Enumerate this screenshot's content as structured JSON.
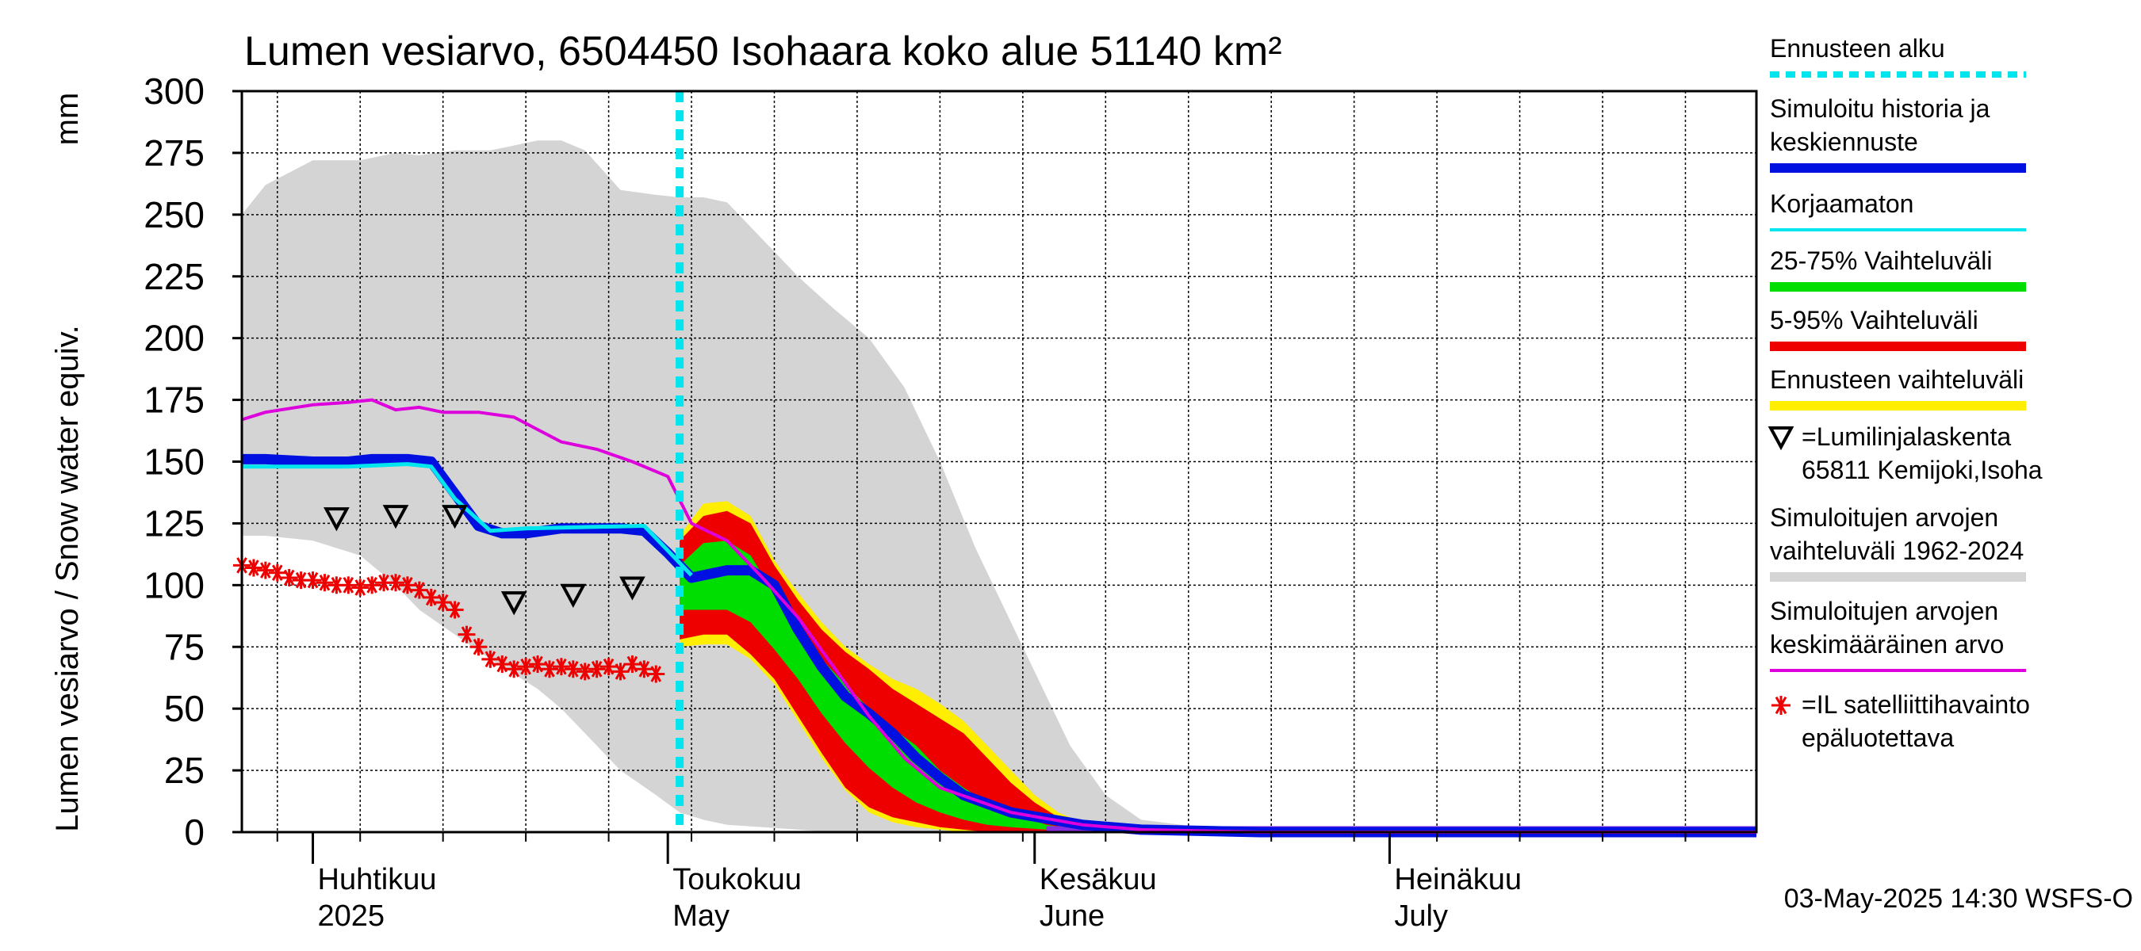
{
  "chart_data": {
    "type": "line",
    "title": "Lumen vesiarvo, 6504450 Isohaara koko alue 51140 km²",
    "ylabel": "Lumen vesiarvo / Snow water equiv.",
    "yunit": "mm",
    "ylim": [
      0,
      300
    ],
    "yticks": [
      0,
      25,
      50,
      75,
      100,
      125,
      150,
      175,
      200,
      225,
      250,
      275,
      300
    ],
    "xlim": [
      "2025-03-26",
      "2025-08-01"
    ],
    "grid": true,
    "legend_position": "right",
    "timestamp": "03-May-2025 14:30 WSFS-O",
    "month_labels": [
      {
        "fi": "Huhtikuu",
        "en": "2025",
        "date": "2025-04-01"
      },
      {
        "fi": "Toukokuu",
        "en": "May",
        "date": "2025-05-01"
      },
      {
        "fi": "Kesäkuu",
        "en": "June",
        "date": "2025-06-01"
      },
      {
        "fi": "Heinäkuu",
        "en": "July",
        "date": "2025-07-01"
      }
    ],
    "forecast_start": "2025-05-02",
    "legend": [
      {
        "label": "Ennusteen alku",
        "color": "#00e5ee",
        "style": "dashed"
      },
      {
        "label": "Simuloitu historia ja keskiennuste",
        "color": "#0010e0",
        "style": "thick"
      },
      {
        "label": "Korjaamaton",
        "color": "#00e5ee",
        "style": "line"
      },
      {
        "label": "25-75% Vaihteluväli",
        "color": "#00dd00",
        "style": "thick"
      },
      {
        "label": "5-95% Vaihteluväli",
        "color": "#ee0000",
        "style": "thick"
      },
      {
        "label": "Ennusteen vaihteluväli",
        "color": "#ffee00",
        "style": "thick"
      },
      {
        "label": "=Lumilinjalaskenta 65811 Kemijoki,Isoha",
        "color": "#000000",
        "style": "triangle"
      },
      {
        "label": "Simuloitujen arvojen vaihteluväli 1962-2024",
        "color": "#d4d4d4",
        "style": "thick"
      },
      {
        "label": "Simuloitujen arvojen keskimääräinen arvo",
        "color": "#dd00dd",
        "style": "line"
      },
      {
        "label": "=IL satelliittihavainto epäluotettava",
        "color": "#ee0000",
        "style": "asterisk"
      }
    ],
    "series": {
      "hist_range_1962_2024": {
        "x": [
          "2025-03-26",
          "2025-03-28",
          "2025-04-01",
          "2025-04-05",
          "2025-04-08",
          "2025-04-10",
          "2025-04-13",
          "2025-04-16",
          "2025-04-20",
          "2025-04-22",
          "2025-04-24",
          "2025-04-27",
          "2025-04-30",
          "2025-05-02",
          "2025-05-04",
          "2025-05-06",
          "2025-05-09",
          "2025-05-12",
          "2025-05-15",
          "2025-05-18",
          "2025-05-21",
          "2025-05-24",
          "2025-05-27",
          "2025-05-30",
          "2025-06-02",
          "2025-06-04",
          "2025-06-07",
          "2025-06-10",
          "2025-06-15",
          "2025-06-20",
          "2025-06-30",
          "2025-08-01"
        ],
        "upper": [
          250,
          262,
          272,
          272,
          275,
          274,
          276,
          276,
          280,
          280,
          276,
          260,
          258,
          257,
          257,
          255,
          240,
          225,
          212,
          200,
          180,
          150,
          115,
          85,
          55,
          35,
          15,
          5,
          2,
          0,
          0,
          0
        ],
        "lower": [
          120,
          120,
          118,
          112,
          100,
          90,
          80,
          70,
          58,
          50,
          40,
          25,
          15,
          8,
          5,
          3,
          2,
          1,
          0,
          0,
          0,
          0,
          0,
          0,
          0,
          0,
          0,
          0,
          0,
          0,
          0,
          0
        ]
      },
      "hist_mean": {
        "x": [
          "2025-03-26",
          "2025-03-28",
          "2025-04-01",
          "2025-04-04",
          "2025-04-06",
          "2025-04-08",
          "2025-04-10",
          "2025-04-12",
          "2025-04-15",
          "2025-04-18",
          "2025-04-20",
          "2025-04-22",
          "2025-04-25",
          "2025-04-28",
          "2025-05-01",
          "2025-05-03",
          "2025-05-06",
          "2025-05-09",
          "2025-05-12",
          "2025-05-15",
          "2025-05-18",
          "2025-05-21",
          "2025-05-24",
          "2025-05-30",
          "2025-06-05",
          "2025-06-10",
          "2025-06-20",
          "2025-08-01"
        ],
        "y": [
          167,
          170,
          173,
          174,
          175,
          171,
          172,
          170,
          170,
          168,
          163,
          158,
          155,
          150,
          144,
          125,
          118,
          103,
          87,
          67,
          47,
          30,
          18,
          8,
          3,
          1,
          0,
          0
        ]
      },
      "simulated_history_and_forecast": {
        "x": [
          "2025-03-26",
          "2025-03-28",
          "2025-04-01",
          "2025-04-04",
          "2025-04-06",
          "2025-04-09",
          "2025-04-11",
          "2025-04-13",
          "2025-04-15",
          "2025-04-17",
          "2025-04-19",
          "2025-04-22",
          "2025-04-25",
          "2025-04-27",
          "2025-04-29",
          "2025-05-01",
          "2025-05-03",
          "2025-05-06",
          "2025-05-08",
          "2025-05-10",
          "2025-05-12",
          "2025-05-14",
          "2025-05-16",
          "2025-05-18",
          "2025-05-20",
          "2025-05-22",
          "2025-05-24",
          "2025-05-26",
          "2025-05-30",
          "2025-06-05",
          "2025-06-10",
          "2025-06-20",
          "2025-08-01"
        ],
        "y": [
          151,
          151,
          150,
          150,
          151,
          151,
          150,
          137,
          124,
          121,
          121,
          123,
          123,
          123,
          122,
          113,
          103,
          106,
          106,
          100,
          82,
          67,
          55,
          48,
          40,
          30,
          22,
          15,
          8,
          3,
          1,
          0,
          0
        ]
      },
      "uncorrected": {
        "x": [
          "2025-03-26",
          "2025-04-04",
          "2025-04-09",
          "2025-04-11",
          "2025-04-13",
          "2025-04-16",
          "2025-04-19",
          "2025-04-29",
          "2025-05-01",
          "2025-05-03"
        ],
        "y": [
          148,
          148,
          149,
          148,
          135,
          122,
          123,
          124,
          114,
          104
        ]
      },
      "forecast_range": {
        "x": [
          "2025-05-02",
          "2025-05-04",
          "2025-05-06",
          "2025-05-08",
          "2025-05-10",
          "2025-05-12",
          "2025-05-14",
          "2025-05-16",
          "2025-05-18",
          "2025-05-20",
          "2025-05-22",
          "2025-05-24",
          "2025-05-26",
          "2025-05-28",
          "2025-05-30",
          "2025-06-01",
          "2025-06-03",
          "2025-06-05",
          "2025-06-08",
          "2025-06-12"
        ],
        "upper": [
          120,
          133,
          134,
          128,
          110,
          97,
          85,
          75,
          68,
          62,
          58,
          52,
          45,
          35,
          25,
          15,
          8,
          4,
          2,
          0
        ],
        "lower": [
          75,
          76,
          76,
          70,
          60,
          45,
          30,
          17,
          8,
          4,
          2,
          1,
          0,
          0,
          0,
          0,
          0,
          0,
          0,
          0
        ]
      },
      "p5_95": {
        "x": [
          "2025-05-02",
          "2025-05-04",
          "2025-05-06",
          "2025-05-08",
          "2025-05-10",
          "2025-05-12",
          "2025-05-14",
          "2025-05-16",
          "2025-05-18",
          "2025-05-20",
          "2025-05-22",
          "2025-05-24",
          "2025-05-26",
          "2025-05-28",
          "2025-05-30",
          "2025-06-01",
          "2025-06-03",
          "2025-06-06",
          "2025-06-10"
        ],
        "upper": [
          118,
          128,
          130,
          125,
          108,
          94,
          82,
          73,
          66,
          58,
          52,
          46,
          40,
          30,
          20,
          12,
          6,
          2,
          0
        ],
        "lower": [
          78,
          80,
          80,
          72,
          62,
          47,
          32,
          18,
          10,
          6,
          4,
          2,
          1,
          0,
          0,
          0,
          0,
          0,
          0
        ]
      },
      "p25_75": {
        "x": [
          "2025-05-02",
          "2025-05-04",
          "2025-05-06",
          "2025-05-08",
          "2025-05-10",
          "2025-05-12",
          "2025-05-14",
          "2025-05-16",
          "2025-05-18",
          "2025-05-20",
          "2025-05-22",
          "2025-05-24",
          "2025-05-26",
          "2025-05-28",
          "2025-05-30",
          "2025-06-02",
          "2025-06-06"
        ],
        "upper": [
          108,
          117,
          118,
          112,
          96,
          82,
          70,
          60,
          50,
          42,
          35,
          25,
          18,
          12,
          8,
          3,
          0
        ],
        "lower": [
          90,
          90,
          90,
          85,
          74,
          62,
          48,
          36,
          26,
          18,
          12,
          8,
          5,
          3,
          2,
          1,
          0
        ]
      },
      "snow_line_survey": {
        "x": [
          "2025-04-03",
          "2025-04-08",
          "2025-04-13",
          "2025-04-18",
          "2025-04-23",
          "2025-04-28"
        ],
        "y": [
          127,
          128,
          128,
          93,
          96,
          99
        ]
      },
      "satellite_observation_unreliable": {
        "x": [
          "2025-03-26",
          "2025-03-27",
          "2025-03-28",
          "2025-03-29",
          "2025-03-30",
          "2025-03-31",
          "2025-04-01",
          "2025-04-02",
          "2025-04-03",
          "2025-04-04",
          "2025-04-05",
          "2025-04-06",
          "2025-04-07",
          "2025-04-08",
          "2025-04-09",
          "2025-04-10",
          "2025-04-11",
          "2025-04-12",
          "2025-04-13",
          "2025-04-14",
          "2025-04-15",
          "2025-04-16",
          "2025-04-17",
          "2025-04-18",
          "2025-04-19",
          "2025-04-20",
          "2025-04-21",
          "2025-04-22",
          "2025-04-23",
          "2025-04-24",
          "2025-04-25",
          "2025-04-26",
          "2025-04-27",
          "2025-04-28",
          "2025-04-29",
          "2025-04-30"
        ],
        "y": [
          108,
          107,
          106,
          105,
          103,
          102,
          102,
          101,
          100,
          100,
          99,
          100,
          101,
          101,
          100,
          98,
          95,
          93,
          90,
          80,
          75,
          70,
          68,
          66,
          67,
          68,
          66,
          67,
          66,
          65,
          66,
          67,
          65,
          68,
          66,
          64
        ]
      }
    }
  }
}
